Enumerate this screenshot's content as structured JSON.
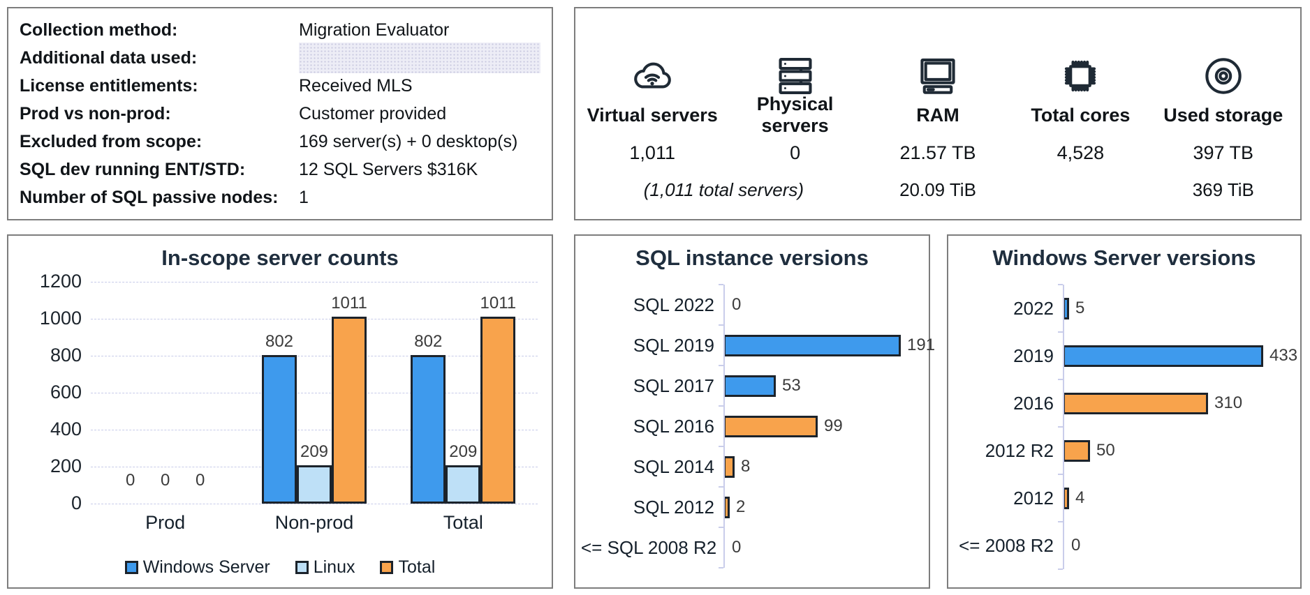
{
  "info_panel": {
    "rows": [
      {
        "label": "Collection method:",
        "value": "Migration Evaluator",
        "highlight": false
      },
      {
        "label": "Additional data used:",
        "value": "",
        "highlight": true
      },
      {
        "label": "License entitlements:",
        "value": "Received MLS",
        "highlight": false
      },
      {
        "label": "Prod vs non-prod:",
        "value": "Customer provided",
        "highlight": false
      },
      {
        "label": "Excluded from scope:",
        "value": "169 server(s) + 0 desktop(s)",
        "highlight": false
      },
      {
        "label": "SQL dev running ENT/STD:",
        "value": "12 SQL Servers $316K",
        "highlight": false
      },
      {
        "label": "Number of SQL passive nodes:",
        "value": "1",
        "highlight": false
      }
    ]
  },
  "summary_panel": {
    "columns": [
      {
        "icon": "cloud-wifi-icon",
        "label": "Virtual servers",
        "value": "1,011"
      },
      {
        "icon": "server-stack-icon",
        "label": "Physical servers",
        "value": "0"
      },
      {
        "icon": "computer-icon",
        "label": "RAM",
        "value": "21.57 TB",
        "secondary": "20.09 TiB"
      },
      {
        "icon": "cpu-chip-icon",
        "label": "Total cores",
        "value": "4,528"
      },
      {
        "icon": "disc-icon",
        "label": "Used storage",
        "value": "397 TB",
        "secondary": "369 TiB"
      }
    ],
    "total_note": "(1,011 total servers)"
  },
  "chart_data": [
    {
      "id": "server-counts",
      "type": "bar",
      "orientation": "vertical",
      "title": "In-scope server counts",
      "categories": [
        "Prod",
        "Non-prod",
        "Total"
      ],
      "series": [
        {
          "name": "Windows Server",
          "color": "#3E9AED",
          "values": [
            0,
            802,
            802
          ]
        },
        {
          "name": "Linux",
          "color": "#BEE0F7",
          "values": [
            0,
            209,
            209
          ]
        },
        {
          "name": "Total",
          "color": "#F8A34C",
          "values": [
            0,
            1011,
            1011
          ]
        }
      ],
      "ylim": [
        0,
        1200
      ],
      "yticks": [
        0,
        200,
        400,
        600,
        800,
        1000,
        1200
      ],
      "grid": true,
      "legend_position": "bottom",
      "value_labels": true
    },
    {
      "id": "sql-instance-versions",
      "type": "bar",
      "orientation": "horizontal",
      "title": "SQL instance versions",
      "categories": [
        "SQL 2022",
        "SQL 2019",
        "SQL 2017",
        "SQL 2016",
        "SQL 2014",
        "SQL 2012",
        "<= SQL 2008 R2"
      ],
      "values": [
        0,
        191,
        53,
        99,
        8,
        2,
        0
      ],
      "bar_colors": [
        "#3E9AED",
        "#3E9AED",
        "#3E9AED",
        "#F8A34C",
        "#F8A34C",
        "#F8A34C",
        "#F8A34C"
      ],
      "xlim": [
        0,
        200
      ],
      "grid": false,
      "value_labels": true
    },
    {
      "id": "windows-server-versions",
      "type": "bar",
      "orientation": "horizontal",
      "title": "Windows Server versions",
      "categories": [
        "2022",
        "2019",
        "2016",
        "2012 R2",
        "2012",
        "<= 2008 R2"
      ],
      "values": [
        5,
        433,
        310,
        50,
        4,
        0
      ],
      "bar_colors": [
        "#3E9AED",
        "#3E9AED",
        "#F8A34C",
        "#F8A34C",
        "#F8A34C",
        "#F8A34C"
      ],
      "xlim": [
        0,
        500
      ],
      "grid": false,
      "value_labels": true
    }
  ],
  "colors": {
    "bar_blue": "#3E9AED",
    "bar_light_blue": "#BEE0F7",
    "bar_orange": "#F8A34C",
    "bar_border": "#1C232B",
    "grid_line": "#C9CDEA",
    "chart_title": "#1F2E3E",
    "panel_border": "#7D7D7D",
    "highlight_fill": "#EDEDF6"
  }
}
